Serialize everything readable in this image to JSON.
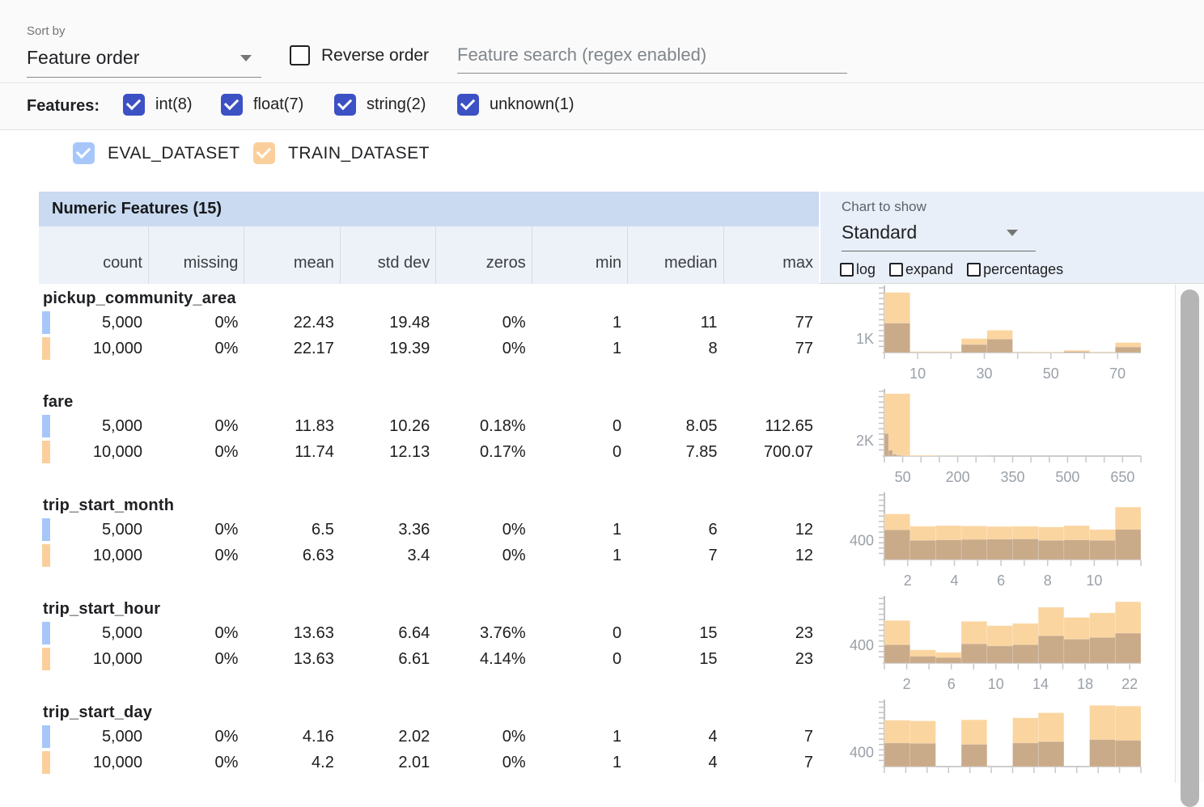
{
  "toolbar": {
    "sort_by_label": "Sort by",
    "sort_value": "Feature order",
    "reverse_label": "Reverse order",
    "search_placeholder": "Feature search (regex enabled)"
  },
  "features_bar": {
    "label": "Features:",
    "types": [
      {
        "label": "int(8)",
        "checked": true
      },
      {
        "label": "float(7)",
        "checked": true
      },
      {
        "label": "string(2)",
        "checked": true
      },
      {
        "label": "unknown(1)",
        "checked": true
      }
    ]
  },
  "datasets": [
    {
      "label": "EVAL_DATASET",
      "color": "#a7c7fb",
      "checked": true
    },
    {
      "label": "TRAIN_DATASET",
      "color": "#fbcf9c",
      "checked": true
    }
  ],
  "table": {
    "title": "Numeric Features (15)",
    "columns": [
      "count",
      "missing",
      "mean",
      "std dev",
      "zeros",
      "min",
      "median",
      "max"
    ],
    "features": [
      {
        "name": "pickup_community_area",
        "rows": [
          {
            "dataset": "EVAL_DATASET",
            "values": [
              "5,000",
              "0%",
              "22.43",
              "19.48",
              "0%",
              "1",
              "11",
              "77"
            ]
          },
          {
            "dataset": "TRAIN_DATASET",
            "values": [
              "10,000",
              "0%",
              "22.17",
              "19.39",
              "0%",
              "1",
              "8",
              "77"
            ]
          }
        ]
      },
      {
        "name": "fare",
        "rows": [
          {
            "dataset": "EVAL_DATASET",
            "values": [
              "5,000",
              "0%",
              "11.83",
              "10.26",
              "0.18%",
              "0",
              "8.05",
              "112.65"
            ]
          },
          {
            "dataset": "TRAIN_DATASET",
            "values": [
              "10,000",
              "0%",
              "11.74",
              "12.13",
              "0.17%",
              "0",
              "7.85",
              "700.07"
            ]
          }
        ]
      },
      {
        "name": "trip_start_month",
        "rows": [
          {
            "dataset": "EVAL_DATASET",
            "values": [
              "5,000",
              "0%",
              "6.5",
              "3.36",
              "0%",
              "1",
              "6",
              "12"
            ]
          },
          {
            "dataset": "TRAIN_DATASET",
            "values": [
              "10,000",
              "0%",
              "6.63",
              "3.4",
              "0%",
              "1",
              "7",
              "12"
            ]
          }
        ]
      },
      {
        "name": "trip_start_hour",
        "rows": [
          {
            "dataset": "EVAL_DATASET",
            "values": [
              "5,000",
              "0%",
              "13.63",
              "6.64",
              "3.76%",
              "0",
              "15",
              "23"
            ]
          },
          {
            "dataset": "TRAIN_DATASET",
            "values": [
              "10,000",
              "0%",
              "13.63",
              "6.61",
              "4.14%",
              "0",
              "15",
              "23"
            ]
          }
        ]
      },
      {
        "name": "trip_start_day",
        "rows": [
          {
            "dataset": "EVAL_DATASET",
            "values": [
              "5,000",
              "0%",
              "4.16",
              "2.02",
              "0%",
              "1",
              "4",
              "7"
            ]
          },
          {
            "dataset": "TRAIN_DATASET",
            "values": [
              "10,000",
              "0%",
              "4.2",
              "2.01",
              "0%",
              "1",
              "4",
              "7"
            ]
          }
        ]
      }
    ]
  },
  "chart_panel": {
    "label": "Chart to show",
    "selected": "Standard",
    "options": [
      "log",
      "expand",
      "percentages"
    ]
  },
  "colors": {
    "accent_indigo": "#3d51c4",
    "eval_marker": "#a7c7fb",
    "train_marker": "#fbcf9c",
    "chart_train": "#fbd5a0",
    "chart_eval": "#9c8274",
    "chart_eval_opacity": 0.52
  },
  "chart_data": [
    {
      "type": "bar",
      "feature": "pickup_community_area",
      "title": "pickup_community_area histogram",
      "ylabel": "1K",
      "ylabel_value": 1000,
      "ymax": 5000,
      "xmin": 0,
      "xmax": 77,
      "xtick_step": 10,
      "xticks_labeled": [
        10,
        30,
        50,
        70
      ],
      "series": [
        {
          "name": "TRAIN_DATASET",
          "start": 0,
          "bucket_width": 7.7,
          "values": [
            4700,
            80,
            80,
            1100,
            1750,
            60,
            60,
            180,
            60,
            780
          ]
        },
        {
          "name": "EVAL_DATASET",
          "start": 0,
          "bucket_width": 7.7,
          "values": [
            2300,
            40,
            40,
            620,
            1050,
            20,
            15,
            80,
            20,
            430
          ]
        }
      ]
    },
    {
      "type": "bar",
      "feature": "fare",
      "title": "fare histogram",
      "ylabel": "2K",
      "ylabel_value": 2000,
      "ymax": 8800,
      "xmin": 0,
      "xmax": 700,
      "xtick_step": 50,
      "xticks_labeled": [
        50,
        200,
        350,
        500,
        650
      ],
      "series": [
        {
          "name": "TRAIN_DATASET",
          "start": 0,
          "bucket_width": 70.01,
          "values": [
            8600,
            120,
            20,
            10,
            5,
            3,
            2,
            1,
            1,
            2
          ]
        },
        {
          "name": "EVAL_DATASET",
          "start": 0,
          "bucket_width": 11.27,
          "values": [
            3100,
            800,
            260,
            120,
            60,
            30,
            15,
            8,
            4,
            3
          ]
        }
      ]
    },
    {
      "type": "bar",
      "feature": "trip_start_month",
      "title": "trip_start_month histogram",
      "ylabel": "400",
      "ylabel_value": 400,
      "ymax": 1400,
      "xmin": 1,
      "xmax": 12,
      "xtick_step": 1,
      "xticks_labeled": [
        2,
        4,
        6,
        8,
        10
      ],
      "series": [
        {
          "name": "TRAIN_DATASET",
          "start": 1,
          "bucket_width": 1.1,
          "values": [
            1000,
            730,
            745,
            735,
            725,
            730,
            715,
            745,
            660,
            1150
          ]
        },
        {
          "name": "EVAL_DATASET",
          "start": 1,
          "bucket_width": 1.1,
          "values": [
            650,
            420,
            430,
            440,
            445,
            450,
            420,
            430,
            420,
            660
          ]
        }
      ]
    },
    {
      "type": "bar",
      "feature": "trip_start_hour",
      "title": "trip_start_hour histogram",
      "ylabel": "400",
      "ylabel_value": 400,
      "ymax": 1500,
      "xmin": 0,
      "xmax": 23,
      "xtick_step": 2,
      "xticks_labeled": [
        2,
        6,
        10,
        14,
        18,
        22
      ],
      "series": [
        {
          "name": "TRAIN_DATASET",
          "start": 0,
          "bucket_width": 2.3,
          "values": [
            1000,
            310,
            250,
            980,
            880,
            930,
            1310,
            1070,
            1180,
            1440
          ]
        },
        {
          "name": "EVAL_DATASET",
          "start": 0,
          "bucket_width": 2.3,
          "values": [
            430,
            160,
            130,
            450,
            400,
            430,
            640,
            560,
            600,
            700
          ]
        }
      ]
    },
    {
      "type": "bar",
      "feature": "trip_start_day",
      "title": "trip_start_day histogram",
      "ylabel": "400",
      "ylabel_value": 400,
      "ymax": 1900,
      "xmin": 1,
      "xmax": 7,
      "xtick_step": 0.5,
      "xticks_labeled": [],
      "series": [
        {
          "name": "TRAIN_DATASET",
          "start": 1,
          "bucket_width": 0.6,
          "values": [
            1380,
            1360,
            0,
            1390,
            0,
            1450,
            1600,
            0,
            1820,
            1800
          ]
        },
        {
          "name": "EVAL_DATASET",
          "start": 1,
          "bucket_width": 0.6,
          "values": [
            700,
            690,
            0,
            660,
            0,
            700,
            740,
            0,
            800,
            780
          ]
        }
      ]
    }
  ]
}
